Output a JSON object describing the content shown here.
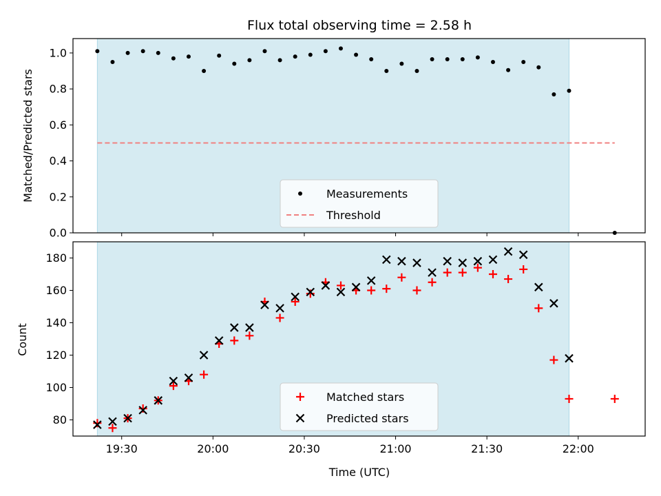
{
  "chart_data": [
    {
      "type": "scatter",
      "title": "Flux total observing time = 2.58 h",
      "xlabel": "",
      "ylabel": "Matched/Predicted stars",
      "ylim": [
        0,
        1.08
      ],
      "yticks": [
        "0.0",
        "0.2",
        "0.4",
        "0.6",
        "0.8",
        "1.0"
      ],
      "ytick_values": [
        0.0,
        0.2,
        0.4,
        0.6,
        0.8,
        1.0
      ],
      "shaded_span": [
        "19:22",
        "21:57"
      ],
      "legend": {
        "placement": "lower center",
        "entries": [
          "Measurements",
          "Threshold"
        ]
      },
      "series": [
        {
          "name": "Measurements",
          "marker": "dot",
          "color": "#000000",
          "x": [
            "19:22",
            "19:27",
            "19:32",
            "19:37",
            "19:42",
            "19:47",
            "19:52",
            "19:57",
            "20:02",
            "20:07",
            "20:12",
            "20:17",
            "20:22",
            "20:27",
            "20:32",
            "20:37",
            "20:42",
            "20:47",
            "20:52",
            "20:57",
            "21:02",
            "21:07",
            "21:12",
            "21:17",
            "21:22",
            "21:27",
            "21:32",
            "21:37",
            "21:42",
            "21:47",
            "21:52",
            "21:57",
            "22:12"
          ],
          "y": [
            1.01,
            0.95,
            1.0,
            1.01,
            1.0,
            0.97,
            0.98,
            0.9,
            0.985,
            0.94,
            0.96,
            1.01,
            0.96,
            0.98,
            0.99,
            1.01,
            1.025,
            0.99,
            0.965,
            0.9,
            0.94,
            0.9,
            0.965,
            0.965,
            0.965,
            0.975,
            0.95,
            0.905,
            0.95,
            0.92,
            0.77,
            0.79,
            0.0
          ]
        },
        {
          "name": "Threshold",
          "marker": "dashed-line",
          "color": "#f08080",
          "x": [
            "19:22",
            "22:12"
          ],
          "y": [
            0.5,
            0.5
          ]
        }
      ]
    },
    {
      "type": "scatter",
      "title": "",
      "xlabel": "Time (UTC)",
      "ylabel": "Count",
      "xlim": [
        "19:14",
        "22:22"
      ],
      "ylim": [
        70,
        190
      ],
      "xticks": [
        "19:30",
        "20:00",
        "20:30",
        "21:00",
        "21:30",
        "22:00"
      ],
      "yticks": [
        "80",
        "100",
        "120",
        "140",
        "160",
        "180"
      ],
      "ytick_values": [
        80,
        100,
        120,
        140,
        160,
        180
      ],
      "shaded_span": [
        "19:22",
        "21:57"
      ],
      "legend": {
        "placement": "lower center",
        "entries": [
          "Matched stars",
          "Predicted stars"
        ]
      },
      "series": [
        {
          "name": "Matched stars",
          "marker": "plus",
          "color": "#ff0000",
          "x": [
            "19:22",
            "19:27",
            "19:32",
            "19:37",
            "19:42",
            "19:47",
            "19:52",
            "19:57",
            "20:02",
            "20:07",
            "20:12",
            "20:17",
            "20:22",
            "20:27",
            "20:32",
            "20:37",
            "20:42",
            "20:47",
            "20:52",
            "20:57",
            "21:02",
            "21:07",
            "21:12",
            "21:17",
            "21:22",
            "21:27",
            "21:32",
            "21:37",
            "21:42",
            "21:47",
            "21:52",
            "21:57",
            "22:12"
          ],
          "y": [
            78,
            75,
            81,
            87,
            92,
            101,
            104,
            108,
            127,
            129,
            132,
            153,
            143,
            153,
            158,
            165,
            163,
            160,
            160,
            161,
            168,
            160,
            165,
            171,
            171,
            174,
            170,
            167,
            173,
            149,
            117,
            93,
            93
          ]
        },
        {
          "name": "Predicted stars",
          "marker": "x",
          "color": "#000000",
          "x": [
            "19:22",
            "19:27",
            "19:32",
            "19:37",
            "19:42",
            "19:47",
            "19:52",
            "19:57",
            "20:02",
            "20:07",
            "20:12",
            "20:17",
            "20:22",
            "20:27",
            "20:32",
            "20:37",
            "20:42",
            "20:47",
            "20:52",
            "20:57",
            "21:02",
            "21:07",
            "21:12",
            "21:17",
            "21:22",
            "21:27",
            "21:32",
            "21:37",
            "21:42",
            "21:47",
            "21:52",
            "21:57"
          ],
          "y": [
            77,
            79,
            81,
            86,
            92,
            104,
            106,
            120,
            129,
            137,
            137,
            151,
            149,
            156,
            159,
            163,
            159,
            162,
            166,
            179,
            178,
            177,
            171,
            178,
            177,
            178,
            179,
            184,
            182,
            162,
            152,
            118
          ]
        }
      ]
    }
  ],
  "colors": {
    "span_fill": "#add8e6",
    "threshold": "#f08080",
    "matched": "#ff0000",
    "predicted": "#000000",
    "measurements": "#000000"
  }
}
